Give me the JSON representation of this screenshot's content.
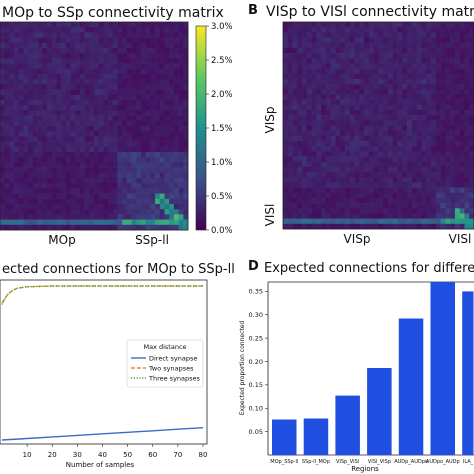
{
  "panels": {
    "A": {
      "letter": "",
      "title": "MOp to SSp connectivity matrix"
    },
    "B": {
      "letter": "B",
      "title": "VISp to VISl connectivity matrix"
    },
    "C": {
      "letter": "",
      "title": "ected connections for MOp to SSp-ll"
    },
    "D": {
      "letter": "D",
      "title": "Expected connections for different"
    }
  },
  "colorbar": {
    "ticks": [
      "3.0%",
      "2.5%",
      "2.0%",
      "1.5%",
      "1.0%",
      "0.5%",
      "0.0%"
    ],
    "colormap": [
      "#440154",
      "#3b528b",
      "#21918c",
      "#5ec962",
      "#fde725"
    ]
  },
  "chart_data": [
    {
      "type": "heatmap",
      "title": "MOp to SSp connectivity matrix",
      "x_region_labels": [
        "MOp",
        "SSp-ll"
      ],
      "colorbar_range": [
        0.0,
        3.0
      ],
      "colorbar_unit": "%"
    },
    {
      "type": "heatmap",
      "title": "VISp to VISl connectivity matrix",
      "x_region_labels": [
        "VISp",
        "VISl"
      ],
      "y_region_labels": [
        "VISp",
        "VISl"
      ]
    },
    {
      "type": "line",
      "title": "ected connections for MOp to SSp-ll",
      "xlabel": "Number of samples",
      "x_ticks": [
        10,
        20,
        30,
        40,
        50,
        60,
        70,
        80
      ],
      "xlim": [
        0,
        80
      ],
      "ylim": [
        0,
        1
      ],
      "legend_title": "Max distance",
      "legend_position": "right",
      "series": [
        {
          "name": "Direct synapse",
          "color": "#3a6bc8",
          "style": "solid",
          "x": [
            0,
            10,
            20,
            30,
            40,
            50,
            60,
            70,
            80
          ],
          "y": [
            0.0,
            0.01,
            0.02,
            0.03,
            0.04,
            0.05,
            0.06,
            0.07,
            0.08
          ]
        },
        {
          "name": "Two synapses",
          "color": "#f08a2a",
          "style": "dashed",
          "x": [
            0,
            2,
            4,
            6,
            8,
            10,
            20,
            30,
            40,
            50,
            60,
            70,
            80
          ],
          "y": [
            0.89,
            0.94,
            0.97,
            0.985,
            0.99,
            0.995,
            1.0,
            1.0,
            1.0,
            1.0,
            1.0,
            1.0,
            1.0
          ]
        },
        {
          "name": "Three synapses",
          "color": "#3ca63c",
          "style": "dotted",
          "x": [
            0,
            2,
            4,
            6,
            8,
            10,
            20,
            30,
            40,
            50,
            60,
            70,
            80
          ],
          "y": [
            0.88,
            0.94,
            0.97,
            0.985,
            0.99,
            0.995,
            1.0,
            1.0,
            1.0,
            1.0,
            1.0,
            1.0,
            1.0
          ]
        }
      ]
    },
    {
      "type": "bar",
      "title": "Expected connections for different",
      "xlabel": "Regions",
      "ylabel": "Expected proportion connected",
      "categories": [
        "MOp_SSp-ll",
        "SSp-ll_MOp",
        "VISp_VISl",
        "VISl_VISp",
        "AUDp_AUDpo",
        "AUDpo_AUDp",
        "ILA_"
      ],
      "values": [
        0.076,
        0.078,
        0.127,
        0.186,
        0.292,
        0.37,
        0.35
      ],
      "ylim": [
        0,
        0.37
      ],
      "y_ticks": [
        "0.05",
        "0.10",
        "0.15",
        "0.20",
        "0.25",
        "0.30",
        "0.35"
      ],
      "bar_color": "#1f4ee0"
    }
  ]
}
